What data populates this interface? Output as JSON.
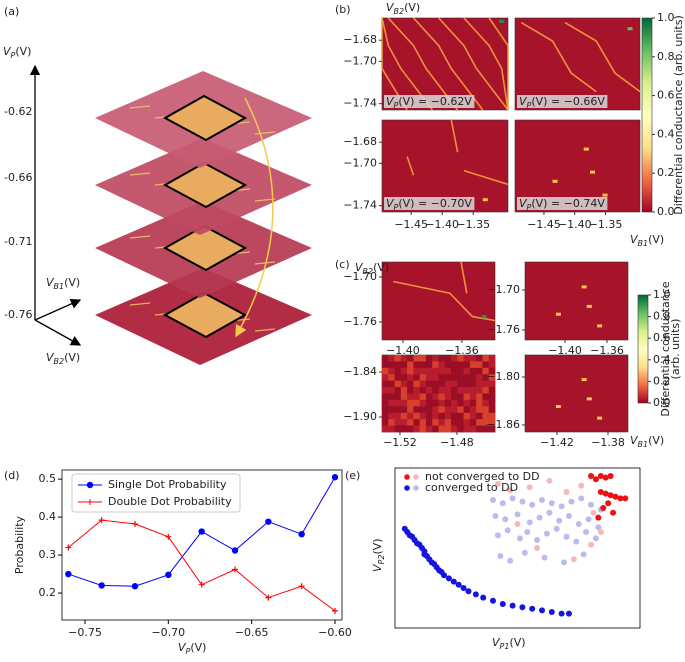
{
  "chart_data": [
    {
      "type": "stack3d",
      "panel": "(a)",
      "ylabel": {
        "symbol": "V",
        "subscript": "P",
        "rest": "(V)"
      },
      "layers": [
        -0.62,
        -0.66,
        -0.71,
        -0.76
      ],
      "xlabel": {
        "symbol": "V",
        "subscript": "B1",
        "rest": "(V)"
      },
      "zlabel": {
        "symbol": "V",
        "subscript": "B2",
        "rest": "(V)"
      }
    },
    {
      "type": "heatmap_shared",
      "panel": "(b)",
      "ylabel": {
        "symbol": "V",
        "subscript": "B2",
        "rest": "(V)"
      },
      "xlabel": {
        "symbol": "V",
        "subscript": "B1",
        "rest": "(V)"
      },
      "xlim": [
        -1.497,
        -1.294
      ],
      "ylim": [
        -1.746,
        -1.659
      ],
      "xticks": [
        {
          "value": -1.45,
          "label": "−1.45"
        },
        {
          "value": -1.4,
          "label": "−1.40"
        },
        {
          "value": -1.35,
          "label": "−1.35"
        }
      ],
      "yticks": [
        {
          "value": -1.68,
          "label": "−1.68"
        },
        {
          "value": -1.7,
          "label": "−1.70"
        },
        {
          "value": -1.74,
          "label": "−1.74"
        }
      ],
      "annotations": [
        {
          "symbol": "V",
          "subscript": "P",
          "rest": "(V) = −0.62V"
        },
        {
          "symbol": "V",
          "subscript": "P",
          "rest": "(V) = −0.66V"
        },
        {
          "symbol": "V",
          "subscript": "P",
          "rest": "(V) = −0.70V"
        },
        {
          "symbol": "V",
          "subscript": "P",
          "rest": "(V) = −0.74V"
        }
      ],
      "colorbar": {
        "label": "Differential conductance (arb. units)",
        "clim": [
          0,
          1
        ],
        "cmap": [
          "#a50026",
          "#f46d43",
          "#fee08b",
          "#ffffbf",
          "#d9ef8b",
          "#66bd63",
          "#006837"
        ],
        "ticks": [
          {
            "value": 0,
            "label": "0.0"
          },
          0.2,
          0.4,
          0.6,
          0.8,
          {
            "value": 1,
            "label": "1.0"
          }
        ]
      }
    },
    {
      "type": "heatmap_grid",
      "panel": "(c)",
      "ylabel": {
        "symbol": "V",
        "subscript": "B2",
        "rest": "(V)"
      },
      "xlabel": {
        "symbol": "V",
        "subscript": "B1",
        "rest": "(V)"
      },
      "subplots": [
        {
          "xlim": [
            -1.4142,
            -1.3376
          ],
          "ylim": [
            -1.784,
            -1.68
          ],
          "xticks": [
            {
              "value": -1.4,
              "label": "−1.40"
            },
            {
              "value": -1.36,
              "label": "−1.36"
            }
          ],
          "yticks": [
            {
              "value": -1.7,
              "label": "−1.70"
            },
            {
              "value": -1.76,
              "label": "−1.76"
            }
          ]
        },
        {
          "xlim": [
            -1.4381,
            -1.34
          ],
          "ylim": [
            -1.775,
            -1.658
          ],
          "xticks": [
            {
              "value": -1.4,
              "label": "−1.40"
            },
            {
              "value": -1.36,
              "label": "−1.36"
            }
          ],
          "yticks": [
            {
              "value": -1.7,
              "label": "−1.70"
            },
            {
              "value": -1.76,
              "label": "−1.76"
            }
          ]
        },
        {
          "xlim": [
            -1.5326,
            -1.4533
          ],
          "ylim": [
            -1.92,
            -1.8173
          ],
          "xticks": [
            {
              "value": -1.52,
              "label": "−1.52"
            },
            {
              "value": -1.48,
              "label": "−1.48"
            }
          ],
          "yticks": [
            {
              "value": -1.84,
              "label": "−1.84"
            },
            {
              "value": -1.9,
              "label": "−1.90"
            }
          ]
        },
        {
          "xlim": [
            -1.4451,
            -1.3643
          ],
          "ylim": [
            -1.8688,
            -1.7725
          ],
          "xticks": [
            {
              "value": -1.42,
              "label": "−1.42"
            },
            {
              "value": -1.38,
              "label": "−1.38"
            }
          ],
          "yticks": [
            {
              "value": -1.8,
              "label": "−1.80"
            },
            {
              "value": -1.86,
              "label": "−1.86"
            }
          ]
        }
      ],
      "colorbar": {
        "label": [
          "Differential conductance",
          "(arb. units)"
        ],
        "clim": [
          0,
          1
        ],
        "cmap": [
          "#a50026",
          "#f46d43",
          "#fee08b",
          "#ffffbf",
          "#d9ef8b",
          "#66bd63",
          "#006837"
        ],
        "ticks": [
          {
            "value": 0,
            "label": "0.0"
          },
          0.2,
          0.4,
          0.6,
          0.8,
          {
            "value": 1,
            "label": "1.0"
          }
        ]
      }
    },
    {
      "type": "line",
      "panel": "(d)",
      "x": [
        -0.76,
        -0.74,
        -0.72,
        -0.7,
        -0.68,
        -0.66,
        -0.64,
        -0.62,
        -0.6
      ],
      "series": [
        {
          "name": "Single Dot Probability",
          "color": "#0000ff",
          "marker": "circle",
          "values": [
            0.25,
            0.22,
            0.218,
            0.248,
            0.362,
            0.312,
            0.388,
            0.355,
            0.505
          ]
        },
        {
          "name": "Double Dot Probability",
          "color": "#ff0000",
          "marker": "plus",
          "values": [
            0.32,
            0.392,
            0.382,
            0.348,
            0.222,
            0.262,
            0.188,
            0.218,
            0.153
          ]
        }
      ],
      "xlim": [
        -0.7638,
        -0.5958
      ],
      "ylim": [
        0.129,
        0.524
      ],
      "xticks": [
        {
          "value": -0.75,
          "label": "−0.75"
        },
        {
          "value": -0.7,
          "label": "−0.70"
        },
        {
          "value": -0.65,
          "label": "−0.65"
        },
        {
          "value": -0.6,
          "label": "−0.60"
        }
      ],
      "yticks": [
        0.2,
        0.3,
        0.4,
        0.5
      ],
      "xlabel": {
        "symbol": "V",
        "subscript": "P",
        "rest": "(V)"
      },
      "ylabel": "Probability",
      "legend": "upper left"
    },
    {
      "type": "scatter",
      "panel": "(e)",
      "xlim": [
        0,
        100
      ],
      "ylim": [
        0,
        100
      ],
      "xlabel": {
        "symbol": "V",
        "subscript": "P1",
        "rest": "(V)"
      },
      "ylabel": {
        "symbol": "V",
        "subscript": "P2",
        "rest": "(V)"
      },
      "legend": "upper left",
      "series": [
        {
          "name": "not converged to DD",
          "groups": [
            {
              "color": "#ee1111",
              "x": [
                80,
                82,
                84,
                86,
                88,
                84,
                86,
                88,
                90,
                92,
                94,
                87,
                85,
                89,
                83
              ],
              "y": [
                95,
                93,
                95,
                94,
                95,
                85,
                84,
                83,
                82,
                81,
                81,
                78,
                75,
                72,
                69
              ]
            },
            {
              "color": "#f6b8b8",
              "x": [
                42,
                47,
                55,
                63,
                70,
                76,
                81,
                84,
                58,
                73,
                50,
                80
              ],
              "y": [
                90,
                86,
                88,
                92,
                85,
                89,
                72,
                60,
                50,
                43,
                65,
                52
              ]
            }
          ]
        },
        {
          "name": "converged to DD",
          "groups": [
            {
              "color": "#1515dd",
              "x": [
                4,
                5,
                6,
                7,
                8,
                9,
                10,
                11,
                12,
                12,
                13,
                14,
                15,
                16,
                17,
                18,
                19,
                20,
                22,
                24,
                26,
                28,
                30,
                33,
                36,
                40,
                44,
                48,
                52,
                56,
                60,
                64,
                68,
                71
              ],
              "y": [
                62,
                60,
                58,
                57,
                55,
                53,
                52,
                50,
                48,
                46,
                45,
                43,
                41,
                40,
                38,
                36,
                35,
                33,
                31,
                29,
                27,
                25,
                23,
                21,
                19,
                17,
                15,
                14,
                13,
                12,
                11,
                10,
                9,
                9
              ]
            },
            {
              "color": "#bbbbee",
              "x": [
                40,
                44,
                48,
                52,
                56,
                60,
                64,
                68,
                72,
                76,
                80,
                84,
                41,
                45,
                50,
                55,
                59,
                63,
                67,
                71,
                75,
                79,
                83,
                42,
                46,
                51,
                54,
                58,
                62,
                66,
                70,
                74,
                78,
                82,
                43,
                47,
                53,
                61,
                69,
                77
              ],
              "y": [
                80,
                78,
                81,
                79,
                77,
                80,
                78,
                76,
                79,
                81,
                77,
                74,
                70,
                68,
                71,
                66,
                69,
                72,
                67,
                70,
                65,
                68,
                63,
                58,
                61,
                56,
                60,
                55,
                59,
                62,
                57,
                54,
                60,
                56,
                45,
                42,
                47,
                44,
                41,
                46
              ]
            }
          ]
        }
      ]
    }
  ]
}
